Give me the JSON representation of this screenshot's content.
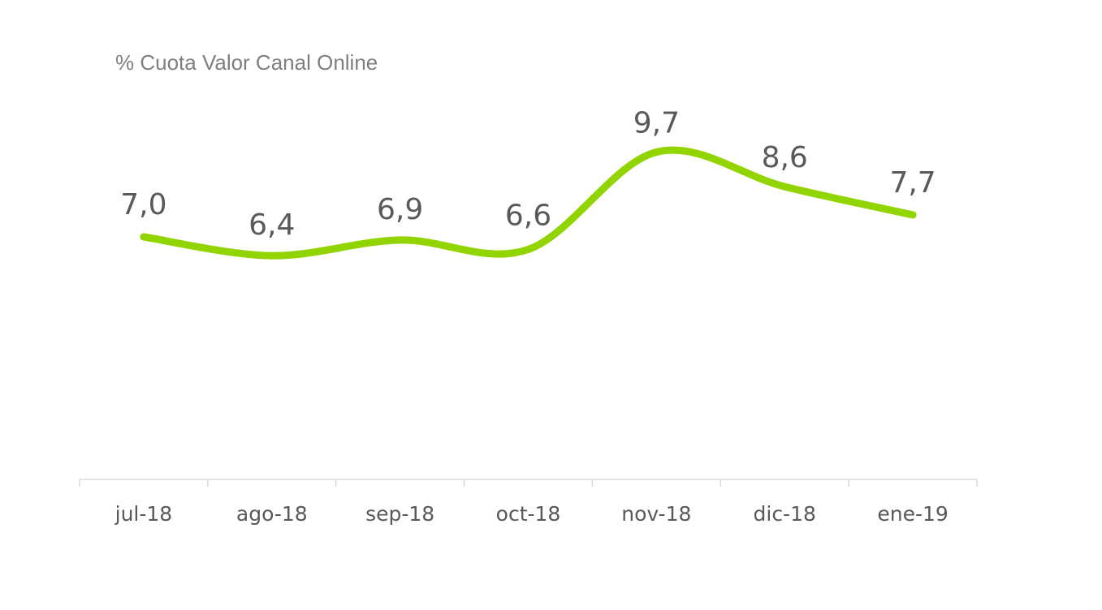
{
  "chart_data": {
    "type": "line",
    "title": "% Cuota Valor Canal Online",
    "xlabel": "",
    "ylabel": "",
    "categories": [
      "jul-18",
      "ago-18",
      "sep-18",
      "oct-18",
      "nov-18",
      "dic-18",
      "ene-19"
    ],
    "series": [
      {
        "values": [
          7.0,
          6.4,
          6.9,
          6.6,
          9.7,
          8.6,
          7.7
        ],
        "labels": [
          "7,0",
          "6,4",
          "6,9",
          "6,6",
          "9,7",
          "8,6",
          "7,7"
        ],
        "color": "#92d400"
      }
    ],
    "smooth": true,
    "grid": false,
    "legend": "none",
    "axis_color": "#d9d9d9",
    "text_color": "#595959",
    "title_color": "#7f7f7f"
  }
}
